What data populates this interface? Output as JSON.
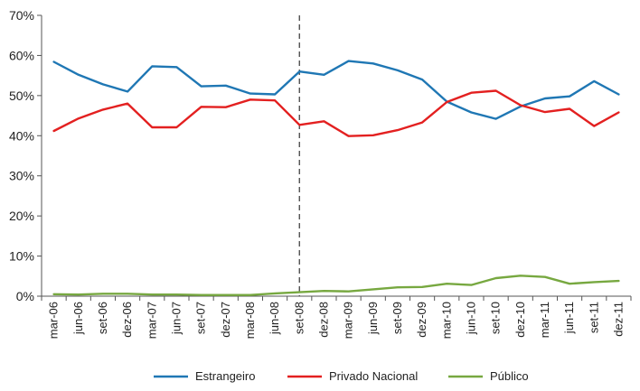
{
  "chart_data": {
    "type": "line",
    "categories": [
      "mar-06",
      "jun-06",
      "set-06",
      "dez-06",
      "mar-07",
      "jun-07",
      "set-07",
      "dez-07",
      "mar-08",
      "jun-08",
      "set-08",
      "dez-08",
      "mar-09",
      "jun-09",
      "set-09",
      "dez-09",
      "mar-10",
      "jun-10",
      "set-10",
      "dez-10",
      "mar-11",
      "jun-11",
      "set-11",
      "dez-11"
    ],
    "series": [
      {
        "name": "Estrangeiro",
        "color": "#1f77b4",
        "values": [
          58.4,
          55.2,
          52.8,
          51.0,
          57.3,
          57.1,
          52.3,
          52.5,
          50.5,
          50.3,
          56.0,
          55.2,
          58.6,
          58.0,
          56.3,
          54.0,
          48.5,
          45.8,
          44.2,
          47.3,
          49.3,
          49.8,
          53.6,
          50.3
        ]
      },
      {
        "name": "Privado Nacional",
        "color": "#e32020",
        "values": [
          41.2,
          44.3,
          46.5,
          48.0,
          42.1,
          42.1,
          47.2,
          47.1,
          49.0,
          48.8,
          42.7,
          43.6,
          39.9,
          40.1,
          41.4,
          43.3,
          48.4,
          50.7,
          51.2,
          47.6,
          45.9,
          46.7,
          42.4,
          45.8
        ]
      },
      {
        "name": "Público",
        "color": "#77a840",
        "values": [
          0.5,
          0.4,
          0.6,
          0.6,
          0.4,
          0.4,
          0.3,
          0.3,
          0.3,
          0.7,
          1.0,
          1.3,
          1.2,
          1.7,
          2.2,
          2.3,
          3.1,
          2.8,
          4.5,
          5.1,
          4.8,
          3.1,
          3.5,
          3.8
        ]
      }
    ],
    "y_ticks": [
      "0%",
      "10%",
      "20%",
      "30%",
      "40%",
      "50%",
      "60%",
      "70%"
    ],
    "ylim": [
      0,
      70
    ],
    "grid": false,
    "vertical_marker": {
      "category": "set-08",
      "style": "dashed"
    },
    "legend_position": "bottom-center",
    "title": "",
    "xlabel": "",
    "ylabel": ""
  }
}
